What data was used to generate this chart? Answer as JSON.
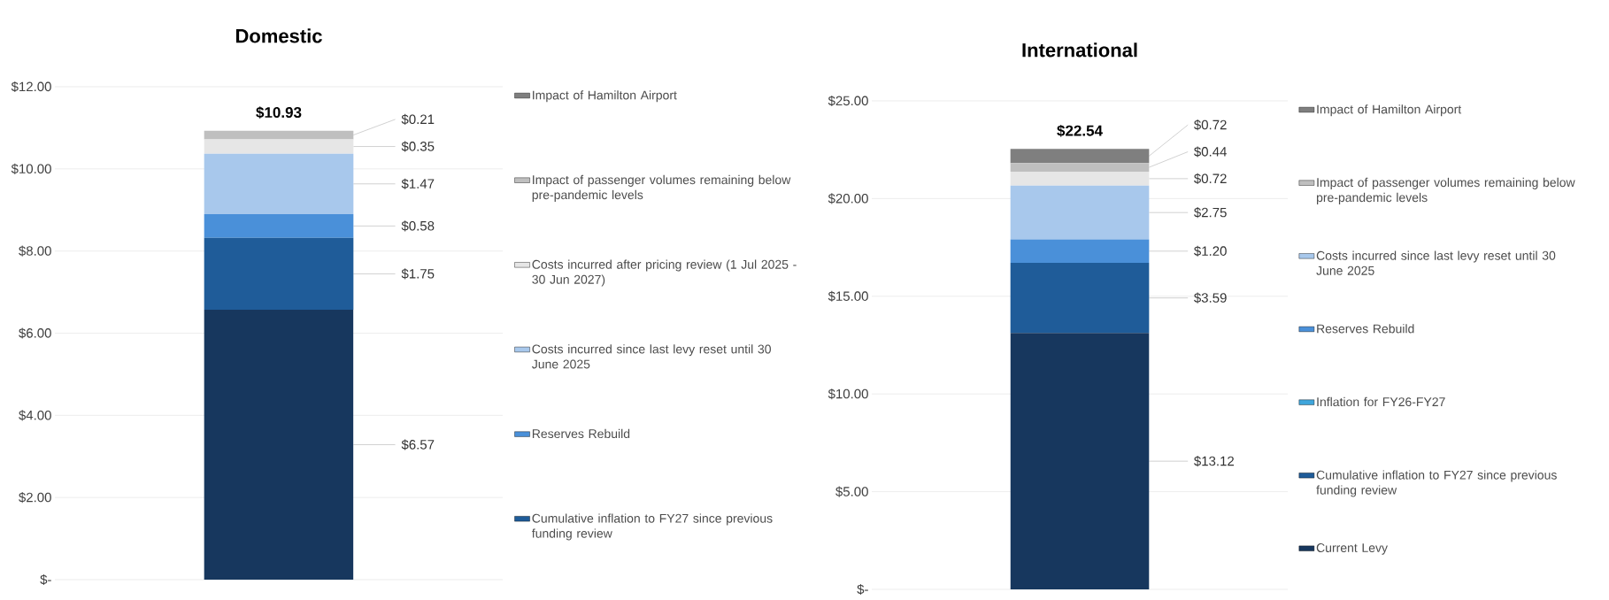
{
  "chart_data": [
    {
      "type": "bar",
      "title": "Domestic",
      "categories": [
        null
      ],
      "stacked": true,
      "grid": "y",
      "legend": "right",
      "ylim": [
        0,
        12
      ],
      "yticks": [
        {
          "value": 0,
          "label": "$-"
        },
        {
          "value": 2,
          "label": "$2.00"
        },
        {
          "value": 4,
          "label": "$4.00"
        },
        {
          "value": 6,
          "label": "$6.00"
        },
        {
          "value": 8,
          "label": "$8.00"
        },
        {
          "value": 10,
          "label": "$10.00"
        },
        {
          "value": 12,
          "label": "$12.00"
        }
      ],
      "totals": [
        "$10.93"
      ],
      "series": [
        {
          "color": "#17375e",
          "values": [
            6.57
          ],
          "value_labels": [
            "$6.57"
          ]
        },
        {
          "name": "Cumulative inflation to FY27 since previous funding review",
          "color": "#1f5c99",
          "values": [
            1.75
          ],
          "value_labels": [
            "$1.75"
          ]
        },
        {
          "name": "Reserves Rebuild",
          "color": "#4a90d9",
          "values": [
            0.58
          ],
          "value_labels": [
            "$0.58"
          ]
        },
        {
          "name": "Costs incurred since last levy reset until 30 June 2025",
          "color": "#a8c8ec",
          "values": [
            1.47
          ],
          "value_labels": [
            "$1.47"
          ]
        },
        {
          "name": "Costs incurred after pricing review (1 Jul 2025 - 30 Jun 2027)",
          "color": "#e6e6e6",
          "values": [
            0.35
          ],
          "value_labels": [
            "$0.35"
          ]
        },
        {
          "name": "Impact of passenger volumes remaining below pre-pandemic levels",
          "color": "#bfbfbf",
          "values": [
            0.21
          ],
          "value_labels": [
            "$0.21"
          ]
        },
        {
          "name": "Impact of Hamilton Airport",
          "color": "#7f7f7f",
          "values": [
            null
          ],
          "value_labels": [
            null
          ]
        }
      ]
    },
    {
      "type": "bar",
      "title": "International",
      "categories": [
        null
      ],
      "stacked": true,
      "grid": "y",
      "legend": "right",
      "ylim": [
        0,
        25
      ],
      "yticks": [
        {
          "value": 0,
          "label": "$-"
        },
        {
          "value": 5,
          "label": "$5.00"
        },
        {
          "value": 10,
          "label": "$10.00"
        },
        {
          "value": 15,
          "label": "$15.00"
        },
        {
          "value": 20,
          "label": "$20.00"
        },
        {
          "value": 25,
          "label": "$25.00"
        }
      ],
      "totals": [
        "$22.54"
      ],
      "series": [
        {
          "name": "Current Levy",
          "color": "#17375e",
          "values": [
            13.12
          ],
          "value_labels": [
            "$13.12"
          ]
        },
        {
          "name": "Cumulative inflation to FY27 since previous funding review",
          "color": "#1f5c99",
          "values": [
            3.59
          ],
          "value_labels": [
            "$3.59"
          ]
        },
        {
          "name": "Inflation for FY26-FY27",
          "color": "#3fa6dc",
          "values": [
            null
          ],
          "value_labels": [
            null
          ]
        },
        {
          "name": "Reserves Rebuild",
          "color": "#4a90d9",
          "values": [
            1.2
          ],
          "value_labels": [
            "$1.20"
          ]
        },
        {
          "name": "Costs incurred since last levy reset until 30 June 2025",
          "color": "#a8c8ec",
          "values": [
            2.75
          ],
          "value_labels": [
            "$2.75"
          ]
        },
        {
          "color": "#e6e6e6",
          "values": [
            0.72
          ],
          "value_labels": [
            "$0.72"
          ]
        },
        {
          "name": "Impact of passenger volumes remaining below pre-pandemic levels",
          "color": "#bfbfbf",
          "values": [
            0.44
          ],
          "value_labels": [
            "$0.44"
          ]
        },
        {
          "name": "Impact of Hamilton Airport",
          "color": "#7f7f7f",
          "values": [
            0.72
          ],
          "value_labels": [
            "$0.72"
          ]
        }
      ]
    }
  ]
}
